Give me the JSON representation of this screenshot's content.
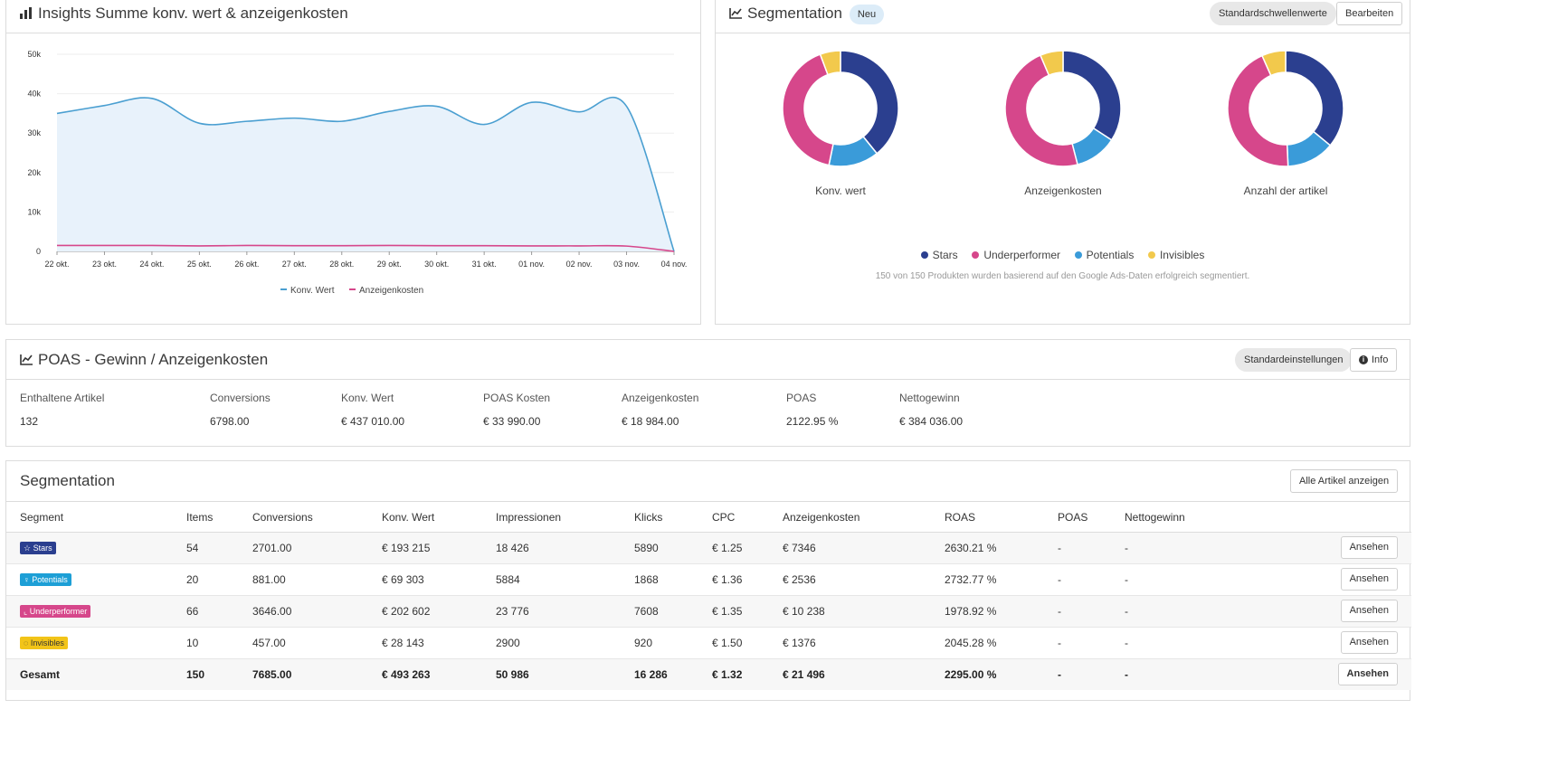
{
  "insights": {
    "title": "Insights Summe konv. wert & anzeigenkosten",
    "chart_data": {
      "type": "line",
      "title": "Insights Summe konv. wert & anzeigenkosten",
      "categories": [
        "22 okt.",
        "23 okt.",
        "24 okt.",
        "25 okt.",
        "26 okt.",
        "27 okt.",
        "28 okt.",
        "29 okt.",
        "30 okt.",
        "31 okt.",
        "01 nov.",
        "02 nov.",
        "03 nov.",
        "04 nov."
      ],
      "y_ticks": [
        "0",
        "10k",
        "20k",
        "30k",
        "40k",
        "50k"
      ],
      "ylim": [
        0,
        50000
      ],
      "series": [
        {
          "name": "Konv. Wert",
          "color": "#4a9fd1",
          "fill": "#e8f2fb",
          "values": [
            35000,
            37000,
            38800,
            32500,
            33000,
            33800,
            33000,
            35500,
            36800,
            32200,
            37800,
            35400,
            36800,
            0
          ]
        },
        {
          "name": "Anzeigenkosten",
          "color": "#d6478b",
          "values": [
            1500,
            1500,
            1500,
            1400,
            1500,
            1450,
            1450,
            1500,
            1450,
            1450,
            1400,
            1400,
            1350,
            0
          ]
        }
      ],
      "legend_position": "bottom"
    }
  },
  "segmentation_chart": {
    "title": "Segmentation",
    "badge": "Neu",
    "btn_default": "Standardschwellenwerte",
    "btn_edit": "Bearbeiten",
    "chart_data": [
      {
        "type": "pie",
        "title": "Konv. wert",
        "labels": [
          "Stars",
          "Potentials",
          "Underperformer",
          "Invisibles"
        ],
        "values": [
          193215,
          69303,
          202602,
          28143
        ]
      },
      {
        "type": "pie",
        "title": "Anzeigenkosten",
        "labels": [
          "Stars",
          "Potentials",
          "Underperformer",
          "Invisibles"
        ],
        "values": [
          7346,
          2536,
          10238,
          1376
        ]
      },
      {
        "type": "pie",
        "title": "Anzahl der artikel",
        "labels": [
          "Stars",
          "Potentials",
          "Underperformer",
          "Invisibles"
        ],
        "values": [
          54,
          20,
          66,
          10
        ]
      }
    ],
    "legend": [
      {
        "label": "Stars",
        "color": "#2b3f8f"
      },
      {
        "label": "Underperformer",
        "color": "#d6478b"
      },
      {
        "label": "Potentials",
        "color": "#3a9bd9"
      },
      {
        "label": "Invisibles",
        "color": "#f2c94c"
      }
    ],
    "note": "150 von 150 Produkten wurden basierend auf den Google Ads-Daten erfolgreich segmentiert."
  },
  "poas": {
    "title": "POAS - Gewinn / Anzeigenkosten",
    "btn_default": "Standardeinstellungen",
    "btn_info": "Info",
    "metrics": [
      {
        "label": "Enthaltene Artikel",
        "value": "132"
      },
      {
        "label": "Conversions",
        "value": "6798.00"
      },
      {
        "label": "Konv. Wert",
        "value": "€ 437 010.00"
      },
      {
        "label": "POAS Kosten",
        "value": "€ 33 990.00"
      },
      {
        "label": "Anzeigenkosten",
        "value": "€ 18 984.00"
      },
      {
        "label": "POAS",
        "value": "2122.95 %"
      },
      {
        "label": "Nettogewinn",
        "value": "€ 384 036.00"
      }
    ]
  },
  "segmentation_table": {
    "title": "Segmentation",
    "btn_all": "Alle Artikel anzeigen",
    "columns": [
      "Segment",
      "Items",
      "Conversions",
      "Konv. Wert",
      "Impressionen",
      "Klicks",
      "CPC",
      "Anzeigenkosten",
      "ROAS",
      "POAS",
      "Nettogewinn",
      ""
    ],
    "action_label": "Ansehen",
    "rows": [
      {
        "segment": "Stars",
        "icon": "star-icon",
        "color": "#2b3f8f",
        "cells": [
          "54",
          "2701.00",
          "€ 193 215",
          "18 426",
          "5890",
          "€ 1.25",
          "€ 7346",
          "2630.21 %",
          "-",
          "-"
        ]
      },
      {
        "segment": "Potentials",
        "icon": "lightbulb-icon",
        "color": "#1d9fd6",
        "cells": [
          "20",
          "881.00",
          "€ 69 303",
          "5884",
          "1868",
          "€ 1.36",
          "€ 2536",
          "2732.77 %",
          "-",
          "-"
        ]
      },
      {
        "segment": "Underperformer",
        "icon": "chart-icon",
        "color": "#d6478b",
        "cells": [
          "66",
          "3646.00",
          "€ 202 602",
          "23 776",
          "7608",
          "€ 1.35",
          "€ 10 238",
          "1978.92 %",
          "-",
          "-"
        ]
      },
      {
        "segment": "Invisibles",
        "icon": "eye-slash-icon",
        "color": "#f2c418",
        "cells": [
          "10",
          "457.00",
          "€ 28 143",
          "2900",
          "920",
          "€ 1.50",
          "€ 1376",
          "2045.28 %",
          "-",
          "-"
        ]
      }
    ],
    "total": {
      "label": "Gesamt",
      "cells": [
        "150",
        "7685.00",
        "€ 493 263",
        "50 986",
        "16 286",
        "€ 1.32",
        "€ 21 496",
        "2295.00 %",
        "-",
        "-"
      ]
    }
  }
}
